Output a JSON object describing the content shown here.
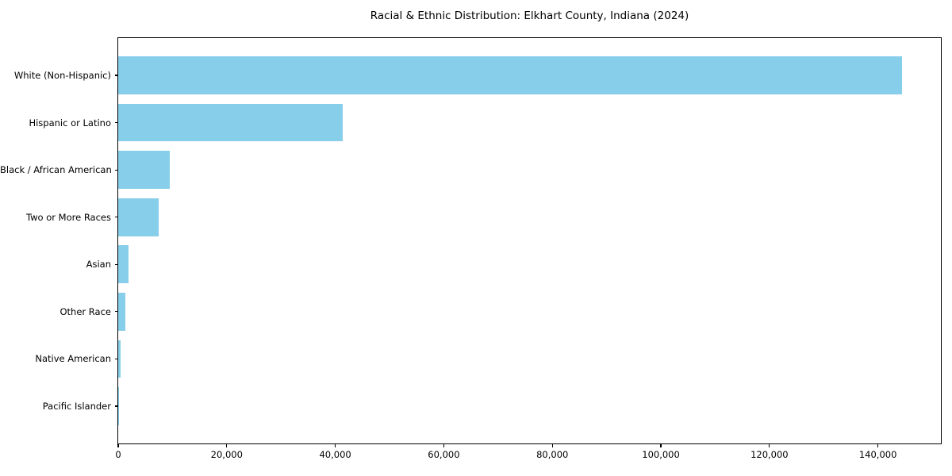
{
  "chart_data": {
    "type": "bar",
    "orientation": "horizontal",
    "title": "Racial & Ethnic Distribution: Elkhart County, Indiana (2024)",
    "categories": [
      "White (Non-Hispanic)",
      "Hispanic or Latino",
      "Black / African American",
      "Two or More Races",
      "Asian",
      "Other Race",
      "Native American",
      "Pacific Islander"
    ],
    "values": [
      144500,
      41400,
      9500,
      7450,
      1900,
      1300,
      450,
      60
    ],
    "xlabel": "",
    "ylabel": "",
    "xlim": [
      0,
      151600
    ],
    "xticks": [
      0,
      20000,
      40000,
      60000,
      80000,
      100000,
      120000,
      140000
    ],
    "xtick_labels": [
      "0",
      "20,000",
      "40,000",
      "60,000",
      "80,000",
      "100,000",
      "120,000",
      "140,000"
    ],
    "bar_color": "#87CEEB",
    "spine_color": "#000000",
    "grid": false,
    "legend": null
  }
}
